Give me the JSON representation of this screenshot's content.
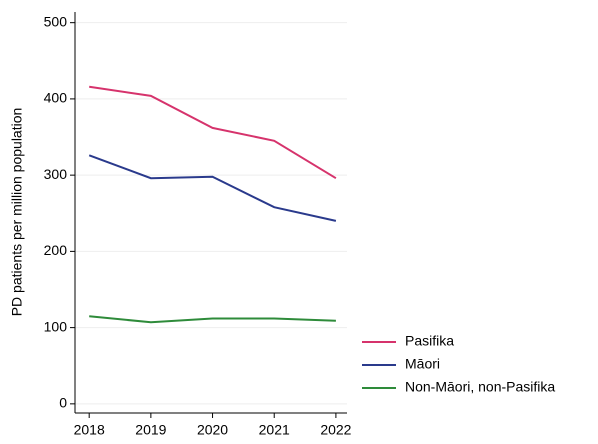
{
  "chart_data": {
    "type": "line",
    "y_label": "PD patients per million population",
    "x": [
      2018,
      2019,
      2020,
      2021,
      2022
    ],
    "xlim": [
      2017.77,
      2022.18
    ],
    "xticks": [
      2018,
      2019,
      2020,
      2021,
      2022
    ],
    "ylim": [
      -12,
      514
    ],
    "yticks": [
      0,
      100,
      200,
      300,
      400,
      500
    ],
    "grid": true,
    "legend": "bottom-right-outside",
    "series": [
      {
        "name": "Pasifika",
        "color": "#d6336c",
        "values": [
          416,
          404,
          362,
          345,
          296
        ]
      },
      {
        "name": "Māori",
        "color": "#2a3a8c",
        "values": [
          326,
          296,
          298,
          258,
          240
        ]
      },
      {
        "name": "Non-Māori, non-Pasifika",
        "color": "#2e8b3a",
        "values": [
          115,
          107,
          112,
          112,
          109
        ]
      }
    ]
  }
}
